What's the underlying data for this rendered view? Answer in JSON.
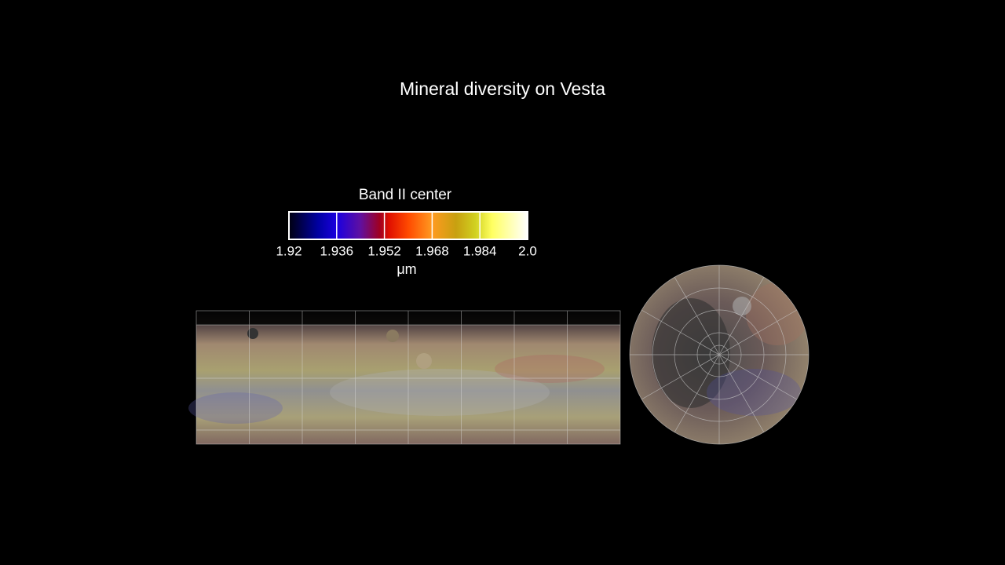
{
  "title": "Mineral diversity on Vesta",
  "colorbar": {
    "label": "Band II center",
    "ticks": [
      "1.92",
      "1.936",
      "1.952",
      "1.968",
      "1.984",
      "2.0"
    ],
    "unit": "μm"
  }
}
